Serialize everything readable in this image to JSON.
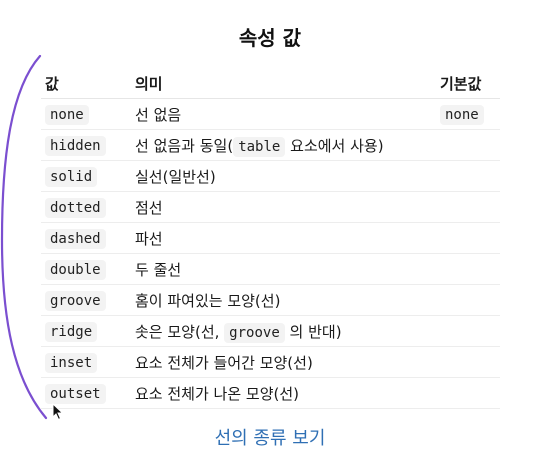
{
  "title": "속성 값",
  "table": {
    "headers": [
      "값",
      "의미",
      "기본값"
    ],
    "rows": [
      {
        "value": "none",
        "meaning": [
          "선 없음"
        ],
        "default": "none"
      },
      {
        "value": "hidden",
        "meaning": [
          "선 없음과 동일(",
          "table",
          "요소에서 사용)"
        ],
        "default": ""
      },
      {
        "value": "solid",
        "meaning": [
          "실선(일반선)"
        ],
        "default": ""
      },
      {
        "value": "dotted",
        "meaning": [
          "점선"
        ],
        "default": ""
      },
      {
        "value": "dashed",
        "meaning": [
          "파선"
        ],
        "default": ""
      },
      {
        "value": "double",
        "meaning": [
          "두 줄선"
        ],
        "default": ""
      },
      {
        "value": "groove",
        "meaning": [
          "홈이 파여있는 모양(선)"
        ],
        "default": ""
      },
      {
        "value": "ridge",
        "meaning": [
          "솟은 모양(선,",
          "groove",
          "의 반대)"
        ],
        "default": ""
      },
      {
        "value": "inset",
        "meaning": [
          "요소 전체가 들어간 모양(선)"
        ],
        "default": ""
      },
      {
        "value": "outset",
        "meaning": [
          "요소 전체가 나온 모양(선)"
        ],
        "default": ""
      }
    ]
  },
  "link_text": "선의 종류 보기",
  "annotation_color": "#7b4fd0",
  "link_color": "#2f6fb4",
  "cursor_icon": "mouse-pointer-icon"
}
